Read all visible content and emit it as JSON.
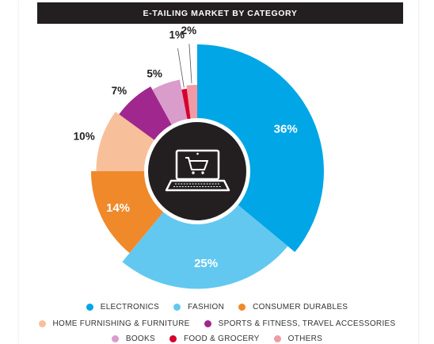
{
  "title": "E-TAILING MARKET BY CATEGORY",
  "chart_data": {
    "type": "pie",
    "title": "E-TAILING MARKET BY CATEGORY",
    "categories": [
      "ELECTRONICS",
      "FASHION",
      "CONSUMER DURABLES",
      "HOME FURNISHING & FURNITURE",
      "SPORTS & FITNESS, TRAVEL ACCESSORIES",
      "BOOKS",
      "FOOD & GROCERY",
      "OTHERS"
    ],
    "values": [
      36,
      25,
      14,
      10,
      7,
      5,
      1,
      2
    ],
    "labels": [
      "36%",
      "25%",
      "14%",
      "10%",
      "7%",
      "5%",
      "1%",
      "2%"
    ],
    "colors": [
      "#00a6e6",
      "#62c8ef",
      "#f0892a",
      "#f8c09a",
      "#a0278e",
      "#d99ccb",
      "#d5002b",
      "#f19aa5"
    ],
    "legend_position": "bottom"
  },
  "legend": [
    {
      "label": "ELECTRONICS",
      "color": "#00a6e6"
    },
    {
      "label": "FASHION",
      "color": "#62c8ef"
    },
    {
      "label": "CONSUMER DURABLES",
      "color": "#f0892a"
    },
    {
      "label": "HOME FURNISHING & FURNITURE",
      "color": "#f8c09a"
    },
    {
      "label": "SPORTS & FITNESS, TRAVEL ACCESSORIES",
      "color": "#a0278e"
    },
    {
      "label": "BOOKS",
      "color": "#d99ccb"
    },
    {
      "label": "FOOD & GROCERY",
      "color": "#d5002b"
    },
    {
      "label": "OTHERS",
      "color": "#f19aa5"
    }
  ],
  "center_icon": "laptop-cart-icon"
}
